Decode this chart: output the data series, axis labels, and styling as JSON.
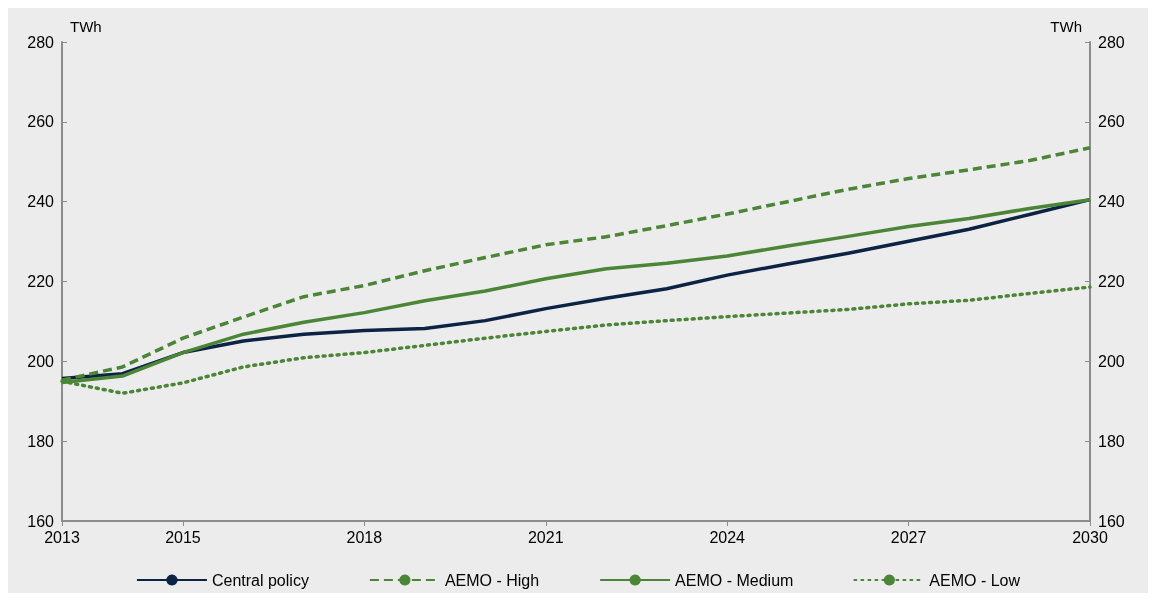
{
  "chart_data": {
    "type": "line",
    "ylabel": "TWh",
    "y2label": "TWh",
    "x": [
      2013,
      2014,
      2015,
      2016,
      2017,
      2018,
      2019,
      2020,
      2021,
      2022,
      2023,
      2024,
      2025,
      2026,
      2027,
      2028,
      2029,
      2030
    ],
    "xlim": [
      2013,
      2030
    ],
    "xticks": [
      2013,
      2015,
      2018,
      2021,
      2024,
      2027,
      2030
    ],
    "ylim": [
      160,
      280
    ],
    "yticks": [
      160,
      180,
      200,
      220,
      240,
      260,
      280
    ],
    "y2lim": [
      160,
      280
    ],
    "y2ticks": [
      160,
      180,
      200,
      220,
      240,
      260,
      280
    ],
    "grid": false,
    "legend": "bottom",
    "marker": "none",
    "series": [
      {
        "name": "Central policy",
        "color": "#0d2344",
        "line_style": "solid",
        "values": [
          195.7,
          196.9,
          202.2,
          205.1,
          206.8,
          207.7,
          208.2,
          210.2,
          213.2,
          215.8,
          218.2,
          221.6,
          224.4,
          227.1,
          230.1,
          233.1,
          236.8,
          240.5
        ]
      },
      {
        "name": "AEMO - High",
        "color": "#4a8636",
        "line_style": "dashed",
        "values": [
          195.3,
          198.6,
          205.8,
          211.1,
          216.2,
          219,
          222.7,
          226,
          229.2,
          231.2,
          234,
          236.9,
          240,
          243.1,
          245.8,
          248,
          250.3,
          253.5
        ]
      },
      {
        "name": "AEMO - Medium",
        "color": "#4a8636",
        "line_style": "solid",
        "values": [
          194.7,
          196.3,
          202.2,
          206.8,
          209.8,
          212.2,
          215.2,
          217.6,
          220.7,
          223.2,
          224.6,
          226.4,
          228.9,
          231.3,
          233.8,
          235.8,
          238.3,
          240.5
        ]
      },
      {
        "name": "AEMO - Low",
        "color": "#4a8636",
        "line_style": "dotted",
        "values": [
          195,
          192,
          194.6,
          198.6,
          200.9,
          202.2,
          204,
          205.8,
          207.5,
          209.1,
          210.2,
          211.2,
          212.1,
          213,
          214.4,
          215.3,
          217,
          218.6
        ]
      }
    ]
  }
}
